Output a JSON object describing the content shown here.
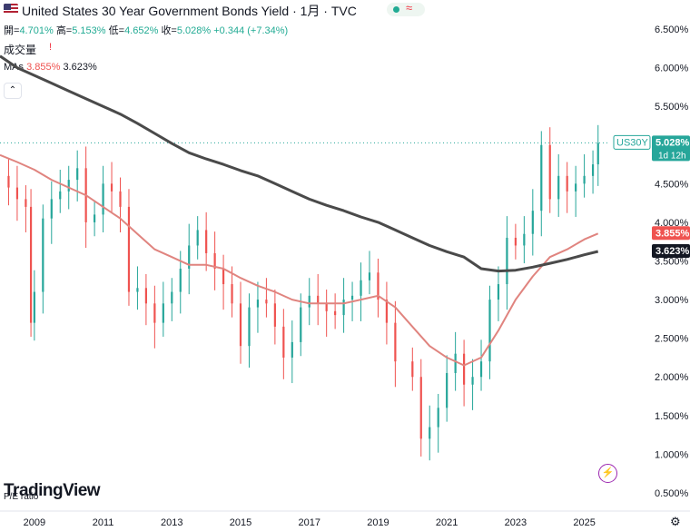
{
  "header": {
    "title": "United States 30 Year Government Bonds Yield · 1月 · TVC",
    "status_symbol": "≈",
    "collapse_symbol": "⌃",
    "open_label": "開=",
    "open_value": "4.701%",
    "high_label": "高=",
    "high_value": "5.153%",
    "low_label": "低=",
    "low_value": "4.652%",
    "close_label": "收=",
    "close_value": "5.028%",
    "change": "+0.344 (+7.34%)",
    "volume_label": "成交量",
    "volume_warning": "!",
    "mas_label": "MAs",
    "ma1_value": "3.855%",
    "ma2_value": "3.623%"
  },
  "chart_data": {
    "type": "candlestick",
    "timeframe": "1M",
    "x_ticks": [
      "2009",
      "2011",
      "2013",
      "2015",
      "2017",
      "2019",
      "2021",
      "2023",
      "2025"
    ],
    "y_ticks": [
      "6.500%",
      "6.000%",
      "5.500%",
      "5.000%",
      "4.500%",
      "4.000%",
      "3.500%",
      "3.000%",
      "2.500%",
      "2.000%",
      "1.500%",
      "1.000%",
      "0.500%"
    ],
    "ylim": [
      0.3,
      6.7
    ],
    "xlim": [
      2008.0,
      2025.75
    ],
    "series": [
      {
        "values": [
          [
            2008.0,
            4.6
          ],
          [
            2008.25,
            4.45
          ],
          [
            2008.5,
            4.3
          ],
          [
            2008.75,
            4.2
          ],
          [
            2008.9,
            2.7
          ],
          [
            2009.0,
            3.1
          ],
          [
            2009.25,
            4.05
          ],
          [
            2009.5,
            4.3
          ],
          [
            2009.75,
            4.4
          ],
          [
            2010.0,
            4.55
          ],
          [
            2010.25,
            4.7
          ],
          [
            2010.5,
            4.0
          ],
          [
            2010.75,
            4.1
          ],
          [
            2011.0,
            4.5
          ],
          [
            2011.25,
            4.4
          ],
          [
            2011.5,
            4.2
          ],
          [
            2011.75,
            3.1
          ],
          [
            2012.0,
            3.15
          ],
          [
            2012.25,
            2.95
          ],
          [
            2012.5,
            2.7
          ],
          [
            2012.75,
            2.95
          ],
          [
            2013.0,
            3.1
          ],
          [
            2013.25,
            3.4
          ],
          [
            2013.5,
            3.7
          ],
          [
            2013.75,
            3.9
          ],
          [
            2014.0,
            3.6
          ],
          [
            2014.25,
            3.4
          ],
          [
            2014.5,
            3.2
          ],
          [
            2014.75,
            2.95
          ],
          [
            2015.0,
            2.4
          ],
          [
            2015.25,
            2.9
          ],
          [
            2015.5,
            3.0
          ],
          [
            2015.75,
            2.95
          ],
          [
            2016.0,
            2.65
          ],
          [
            2016.25,
            2.25
          ],
          [
            2016.5,
            2.45
          ],
          [
            2016.75,
            2.9
          ],
          [
            2017.0,
            3.05
          ],
          [
            2017.25,
            2.95
          ],
          [
            2017.5,
            2.85
          ],
          [
            2017.75,
            2.8
          ],
          [
            2018.0,
            3.0
          ],
          [
            2018.25,
            3.05
          ],
          [
            2018.5,
            3.25
          ],
          [
            2018.75,
            3.35
          ],
          [
            2019.0,
            3.0
          ],
          [
            2019.25,
            2.7
          ],
          [
            2019.5,
            2.2
          ],
          [
            2020.0,
            2.0
          ],
          [
            2020.25,
            1.2
          ],
          [
            2020.5,
            1.35
          ],
          [
            2020.75,
            1.6
          ],
          [
            2021.0,
            2.05
          ],
          [
            2021.25,
            2.3
          ],
          [
            2021.5,
            1.9
          ],
          [
            2021.75,
            2.0
          ],
          [
            2022.0,
            2.2
          ],
          [
            2022.25,
            3.0
          ],
          [
            2022.5,
            3.2
          ],
          [
            2022.75,
            3.8
          ],
          [
            2023.0,
            3.7
          ],
          [
            2023.25,
            3.85
          ],
          [
            2023.5,
            4.15
          ],
          [
            2023.75,
            5.0
          ],
          [
            2024.0,
            4.3
          ],
          [
            2024.25,
            4.6
          ],
          [
            2024.5,
            4.4
          ],
          [
            2024.75,
            4.5
          ],
          [
            2025.0,
            4.6
          ],
          [
            2025.25,
            4.75
          ],
          [
            2025.4,
            5.028
          ]
        ]
      },
      {
        "name": "MA",
        "values": [
          [
            2008.0,
            4.87
          ],
          [
            2008.5,
            4.78
          ],
          [
            2009.0,
            4.68
          ],
          [
            2009.5,
            4.55
          ],
          [
            2010.0,
            4.45
          ],
          [
            2010.5,
            4.35
          ],
          [
            2011.0,
            4.2
          ],
          [
            2011.5,
            4.05
          ],
          [
            2012.0,
            3.85
          ],
          [
            2012.5,
            3.65
          ],
          [
            2013.0,
            3.55
          ],
          [
            2013.5,
            3.45
          ],
          [
            2014.0,
            3.45
          ],
          [
            2014.5,
            3.4
          ],
          [
            2015.0,
            3.28
          ],
          [
            2015.5,
            3.18
          ],
          [
            2016.0,
            3.1
          ],
          [
            2016.5,
            3.0
          ],
          [
            2017.0,
            2.95
          ],
          [
            2017.5,
            2.95
          ],
          [
            2018.0,
            2.95
          ],
          [
            2018.5,
            3.0
          ],
          [
            2019.0,
            3.05
          ],
          [
            2019.5,
            2.9
          ],
          [
            2020.0,
            2.65
          ],
          [
            2020.5,
            2.4
          ],
          [
            2021.0,
            2.25
          ],
          [
            2021.5,
            2.15
          ],
          [
            2022.0,
            2.25
          ],
          [
            2022.5,
            2.6
          ],
          [
            2023.0,
            3.0
          ],
          [
            2023.5,
            3.3
          ],
          [
            2024.0,
            3.55
          ],
          [
            2024.5,
            3.65
          ],
          [
            2025.0,
            3.78
          ],
          [
            2025.4,
            3.855
          ]
        ]
      },
      {
        "name": "MA",
        "values": [
          [
            2008.0,
            6.15
          ],
          [
            2008.5,
            6.0
          ],
          [
            2009.0,
            5.9
          ],
          [
            2009.5,
            5.8
          ],
          [
            2010.0,
            5.7
          ],
          [
            2010.5,
            5.6
          ],
          [
            2011.0,
            5.5
          ],
          [
            2011.5,
            5.4
          ],
          [
            2012.0,
            5.28
          ],
          [
            2012.5,
            5.15
          ],
          [
            2013.0,
            5.02
          ],
          [
            2013.5,
            4.9
          ],
          [
            2014.0,
            4.82
          ],
          [
            2014.5,
            4.75
          ],
          [
            2015.0,
            4.67
          ],
          [
            2015.5,
            4.6
          ],
          [
            2016.0,
            4.5
          ],
          [
            2016.5,
            4.4
          ],
          [
            2017.0,
            4.3
          ],
          [
            2017.5,
            4.22
          ],
          [
            2018.0,
            4.15
          ],
          [
            2018.5,
            4.07
          ],
          [
            2019.0,
            4.0
          ],
          [
            2019.5,
            3.9
          ],
          [
            2020.0,
            3.8
          ],
          [
            2020.5,
            3.7
          ],
          [
            2021.0,
            3.62
          ],
          [
            2021.5,
            3.55
          ],
          [
            2022.0,
            3.4
          ],
          [
            2022.5,
            3.37
          ],
          [
            2023.0,
            3.38
          ],
          [
            2023.5,
            3.42
          ],
          [
            2024.0,
            3.47
          ],
          [
            2024.5,
            3.52
          ],
          [
            2025.0,
            3.58
          ],
          [
            2025.4,
            3.623
          ]
        ]
      }
    ],
    "price_tags": [
      {
        "label": "US30Y",
        "value": "5.028%",
        "sub": "1d 12h",
        "y": 5.028,
        "color": "#26a69a"
      },
      {
        "label": "",
        "value": "3.855%",
        "y": 3.855,
        "color": "#ef5350"
      },
      {
        "label": "",
        "value": "3.623%",
        "y": 3.623,
        "color": "#131722"
      }
    ],
    "colors": {
      "up": "#26a69a",
      "down": "#ef5350",
      "ma1": "#e0847f",
      "ma2": "#4a4a4a"
    }
  },
  "footer": {
    "logo": "TradingView",
    "pe_label": "P/E ratio",
    "flash_symbol": "⚡",
    "settings_symbol": "⚙"
  }
}
